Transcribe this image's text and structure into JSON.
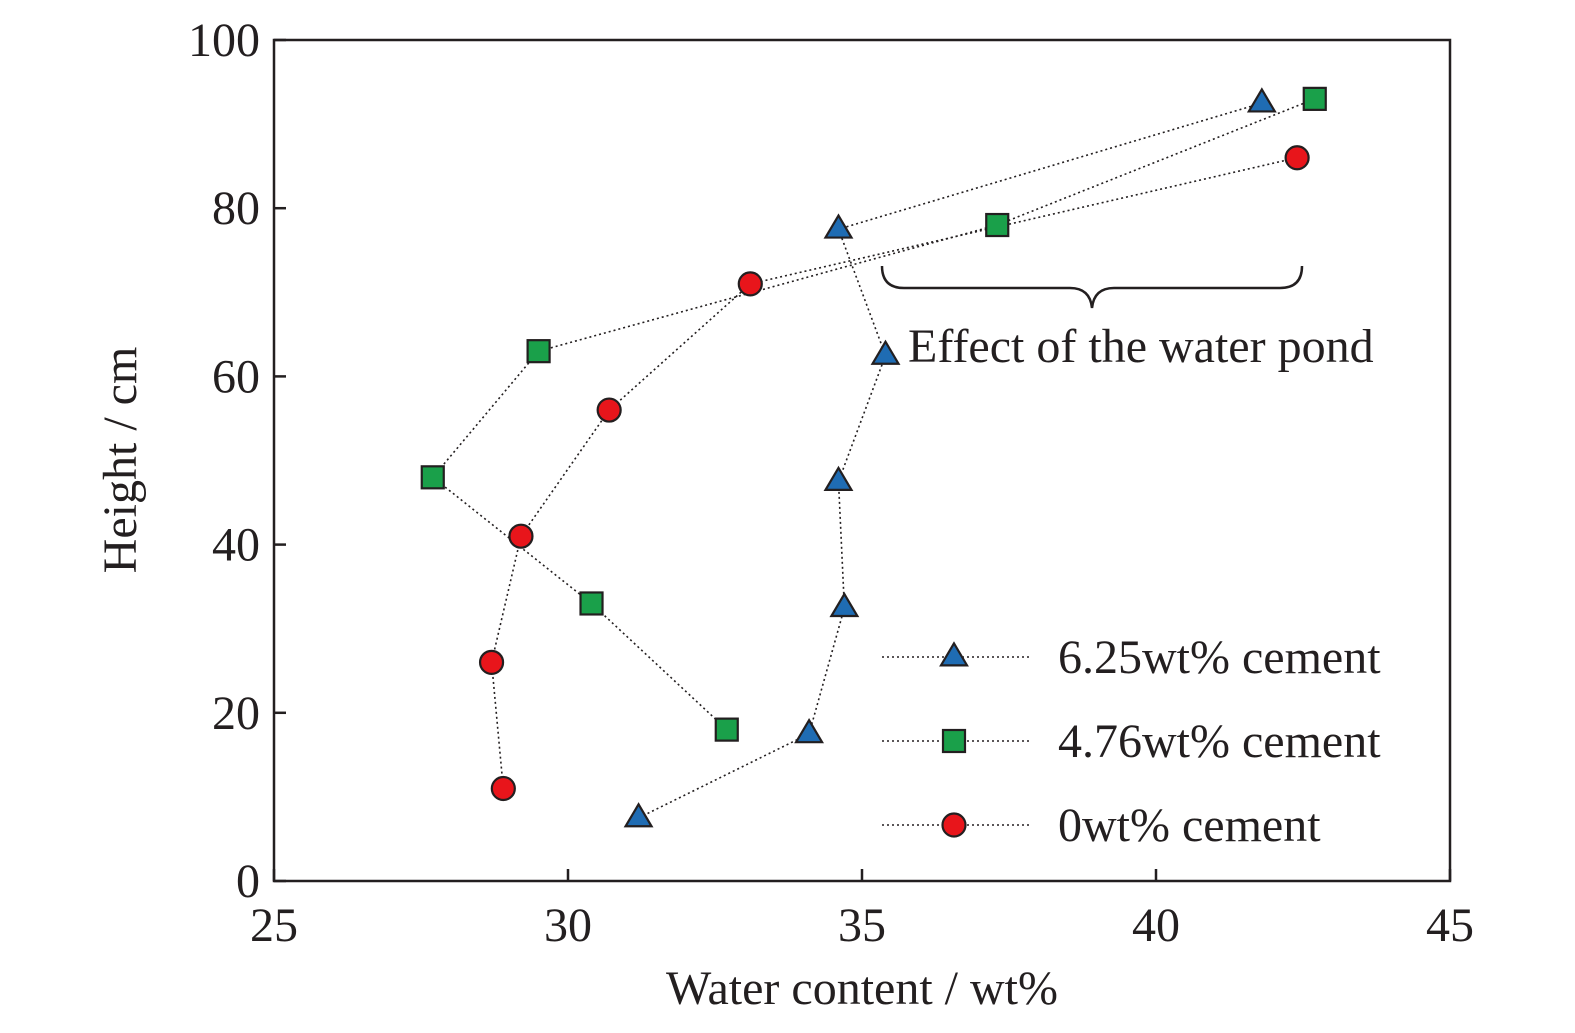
{
  "chart_data": {
    "type": "scatter",
    "title": "",
    "xlabel": "Water content / wt%",
    "ylabel": "Height / cm",
    "xlim": [
      25,
      45
    ],
    "ylim": [
      0,
      100
    ],
    "xticks": [
      25,
      30,
      35,
      40,
      45
    ],
    "yticks": [
      0,
      20,
      40,
      60,
      80,
      100
    ],
    "grid": false,
    "legend_position": "bottom-right",
    "annotation": "Effect of the water pond",
    "series": [
      {
        "name": "6.25wt% cement",
        "marker": "triangle",
        "color": "#1f6cb3",
        "line_style": "dotted",
        "points": [
          {
            "x": 31.2,
            "y": 7.5
          },
          {
            "x": 34.1,
            "y": 17.5
          },
          {
            "x": 34.7,
            "y": 32.5
          },
          {
            "x": 34.6,
            "y": 47.5
          },
          {
            "x": 35.4,
            "y": 62.5
          },
          {
            "x": 34.6,
            "y": 77.5
          },
          {
            "x": 41.8,
            "y": 92.5
          }
        ]
      },
      {
        "name": "4.76wt% cement",
        "marker": "square",
        "color": "#1aa04a",
        "line_style": "dotted",
        "points": [
          {
            "x": 32.7,
            "y": 18
          },
          {
            "x": 30.4,
            "y": 33
          },
          {
            "x": 27.7,
            "y": 48
          },
          {
            "x": 29.5,
            "y": 63
          },
          {
            "x": 37.3,
            "y": 78
          },
          {
            "x": 42.7,
            "y": 93
          }
        ]
      },
      {
        "name": "0wt% cement",
        "marker": "circle",
        "color": "#e8151b",
        "line_style": "dotted",
        "points": [
          {
            "x": 28.9,
            "y": 11
          },
          {
            "x": 28.7,
            "y": 26
          },
          {
            "x": 29.2,
            "y": 41
          },
          {
            "x": 30.7,
            "y": 56
          },
          {
            "x": 33.1,
            "y": 71
          },
          {
            "x": 42.4,
            "y": 86
          }
        ]
      }
    ]
  }
}
